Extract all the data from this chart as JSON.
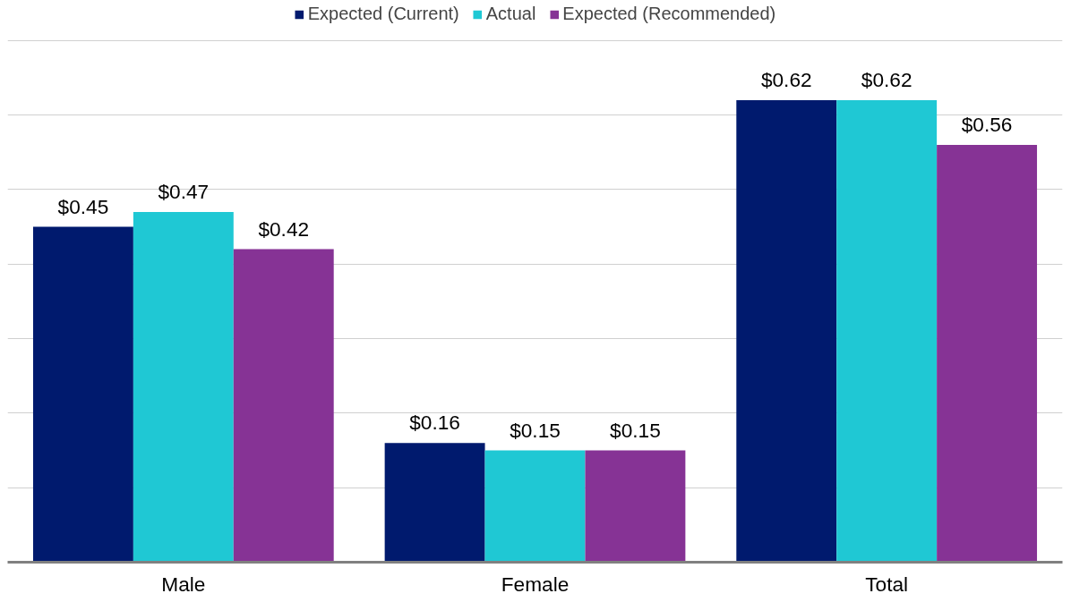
{
  "chart_data": {
    "type": "bar",
    "categories": [
      "Male",
      "Female",
      "Total"
    ],
    "series": [
      {
        "name": "Expected (Current)",
        "color": "#001a6e",
        "values": [
          0.45,
          0.16,
          0.62
        ],
        "value_labels": [
          "$0.45",
          "$0.16",
          "$0.62"
        ]
      },
      {
        "name": "Actual",
        "color": "#1fc8d4",
        "values": [
          0.47,
          0.15,
          0.62
        ],
        "value_labels": [
          "$0.47",
          "$0.15",
          "$0.62"
        ]
      },
      {
        "name": "Expected (Recommended)",
        "color": "#863395",
        "values": [
          0.42,
          0.15,
          0.56
        ],
        "value_labels": [
          "$0.42",
          "$0.15",
          "$0.56"
        ]
      }
    ],
    "yticks": [
      {
        "value": 0,
        "label": null
      },
      {
        "value": 0.1,
        "label": null
      },
      {
        "value": 0.2,
        "label": null
      },
      {
        "value": 0.3,
        "label": null
      },
      {
        "value": 0.4,
        "label": null
      },
      {
        "value": 0.5,
        "label": null
      },
      {
        "value": 0.6,
        "label": null
      },
      {
        "value": 0.7,
        "label": null
      }
    ],
    "tick_labels": "x",
    "grid": "y",
    "legend": "top"
  }
}
